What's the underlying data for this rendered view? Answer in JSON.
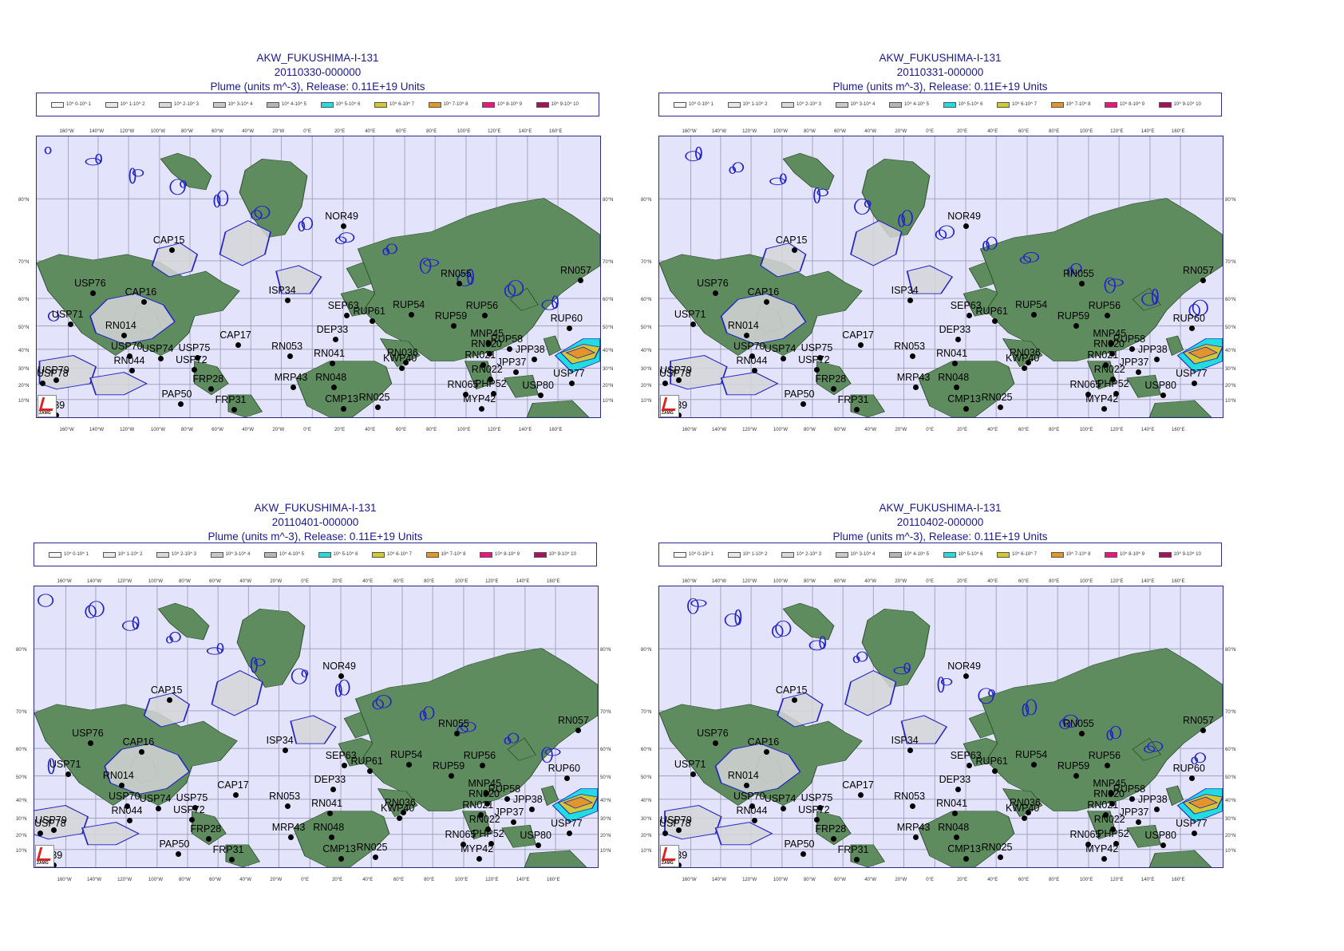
{
  "legend": [
    {
      "label": "10^ 0-10^ 1",
      "color": "#f7f7f7"
    },
    {
      "label": "10^ 1-10^ 2",
      "color": "#e8e8e8"
    },
    {
      "label": "10^ 2-10^ 3",
      "color": "#d9d9d9"
    },
    {
      "label": "10^ 3-10^ 4",
      "color": "#c8c8c8"
    },
    {
      "label": "10^ 4-10^ 5",
      "color": "#b5b5b5"
    },
    {
      "label": "10^ 5-10^ 6",
      "color": "#22dde0"
    },
    {
      "label": "10^ 6-10^ 7",
      "color": "#d2c832"
    },
    {
      "label": "10^ 7-10^ 8",
      "color": "#e2962a"
    },
    {
      "label": "10^ 8-10^ 9",
      "color": "#f0147c"
    },
    {
      "label": "10^ 9-10^ 10",
      "color": "#a8105e"
    }
  ],
  "lon_ticks": [
    "160°W",
    "140°W",
    "120°W",
    "100°W",
    "80°W",
    "60°W",
    "40°W",
    "20°W",
    "0°E",
    "20°E",
    "40°E",
    "60°E",
    "80°E",
    "100°E",
    "120°E",
    "140°E",
    "160°E"
  ],
  "lat_ticks": [
    "80°N",
    "70°N",
    "60°N",
    "50°N",
    "40°N",
    "30°N",
    "20°N",
    "10°N"
  ],
  "logo_text": "ZAMG",
  "colors": {
    "ocean": "#e3e3fb",
    "land": "#5f8c5f",
    "contour": "#2323c8",
    "title": "#1a1a8c"
  },
  "panels": [
    {
      "title": "AKW_FUKUSHIMA-I-131",
      "date": "20110330-000000",
      "subtitle": "Plume (units m^-3), Release:  0.11E+19 Units"
    },
    {
      "title": "AKW_FUKUSHIMA-I-131",
      "date": "20110331-000000",
      "subtitle": "Plume (units m^-3), Release:  0.11E+19 Units"
    },
    {
      "title": "AKW_FUKUSHIMA-I-131",
      "date": "20110401-000000",
      "subtitle": "Plume (units m^-3), Release:  0.11E+19 Units"
    },
    {
      "title": "AKW_FUKUSHIMA-I-131",
      "date": "20110402-000000",
      "subtitle": "Plume (units m^-3), Release:  0.11E+19 Units"
    }
  ],
  "stations": [
    "NOR49",
    "CAP15",
    "RN055",
    "RN057",
    "USP76",
    "CAP16",
    "ISP34",
    "SEP63",
    "RUP54",
    "RUP56",
    "RUP61",
    "USP71",
    "RUP59",
    "RUP60",
    "RN014",
    "DEP33",
    "MNP45",
    "CAP17",
    "RUP58",
    "USP70",
    "USP74",
    "USP75",
    "RN053",
    "RN020",
    "RN041",
    "RN036",
    "RN021",
    "JPP38",
    "USP78",
    "RN044",
    "USP72",
    "KWP40",
    "RN022",
    "JPP37",
    "USP79",
    "FRP28",
    "MRP43",
    "RN048",
    "USP77",
    "RN065",
    "PHP52",
    "USP80",
    "PAP50",
    "FRP31",
    "CMP13",
    "RN025",
    "MYP42",
    "KIP39"
  ]
}
